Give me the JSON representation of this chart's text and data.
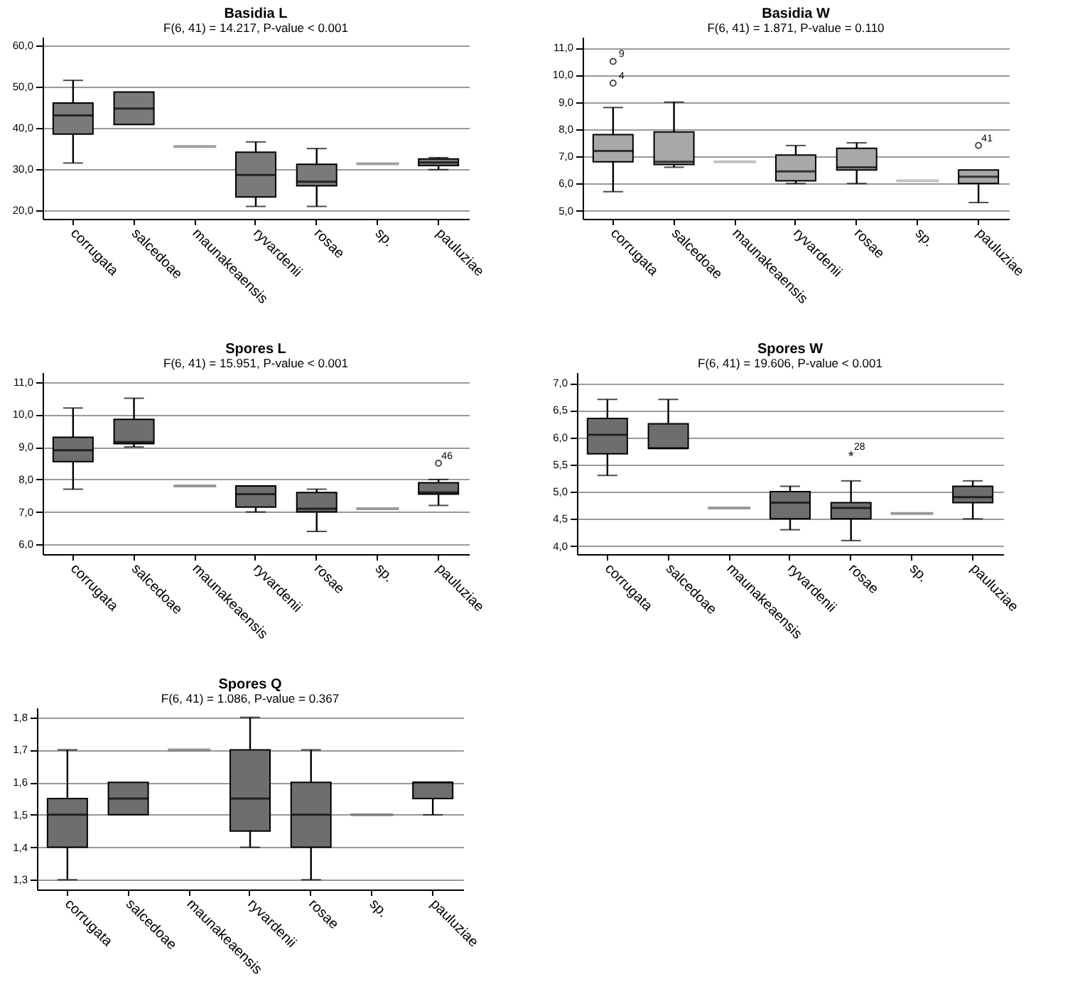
{
  "chart_data": [
    {
      "type": "box",
      "title": "Basidia L",
      "subtitle": "F(6, 41) = 14.217, P-value < 0.001",
      "categories": [
        "corrugata",
        "salcedoae",
        "maunakeaensis",
        "ryvardenii",
        "rosae",
        "sp.",
        "pauluziae"
      ],
      "ylim": [
        18,
        62
      ],
      "yticks": [
        {
          "value": 20,
          "label": "20,0"
        },
        {
          "value": 30,
          "label": "30,0"
        },
        {
          "value": 40,
          "label": "40,0"
        },
        {
          "value": 50,
          "label": "50,0"
        },
        {
          "value": 60,
          "label": "60,0"
        }
      ],
      "grid": "y",
      "series": [
        {
          "color": "#7a7a7a",
          "boxes": [
            {
              "low": 31.5,
              "q1": 38.5,
              "median": 43,
              "q3": 46,
              "high": 51.5
            },
            {
              "low": 40.8,
              "q1": 40.8,
              "median": 44.7,
              "q3": 48.7,
              "high": 48.7
            },
            {
              "low": 35.5,
              "q1": 35.5,
              "median": 35.5,
              "q3": 35.5,
              "high": 35.5
            },
            {
              "low": 21,
              "q1": 23.3,
              "median": 28.6,
              "q3": 34.1,
              "high": 36.6
            },
            {
              "low": 21,
              "q1": 26,
              "median": 27,
              "q3": 31.2,
              "high": 35
            },
            {
              "low": 31.3,
              "q1": 31.3,
              "median": 31.3,
              "q3": 31.3,
              "high": 31.3
            },
            {
              "low": 29.9,
              "q1": 30.9,
              "median": 31.6,
              "q3": 32.5,
              "high": 32.8
            }
          ]
        }
      ]
    },
    {
      "type": "box",
      "title": "Basidia W",
      "subtitle": "F(6, 41) = 1.871, P-value = 0.110",
      "categories": [
        "corrugata",
        "salcedoae",
        "maunakeaensis",
        "ryvardenii",
        "rosae",
        "sp.",
        "pauluziae"
      ],
      "ylim": [
        4.7,
        11.4
      ],
      "yticks": [
        {
          "value": 5,
          "label": "5,0"
        },
        {
          "value": 6,
          "label": "6,0"
        },
        {
          "value": 7,
          "label": "7,0"
        },
        {
          "value": 8,
          "label": "8,0"
        },
        {
          "value": 9,
          "label": "9,0"
        },
        {
          "value": 10,
          "label": "10,0"
        },
        {
          "value": 11,
          "label": "11,0"
        }
      ],
      "grid": "y",
      "marker": "circle",
      "annotations": [
        "4",
        "9",
        "41"
      ],
      "series": [
        {
          "color": "#a8a8a8",
          "boxes": [
            {
              "low": 5.7,
              "q1": 6.8,
              "median": 7.2,
              "q3": 7.8,
              "high": 8.8,
              "outliers": [
                9.7,
                10.5
              ]
            },
            {
              "low": 6.6,
              "q1": 6.7,
              "median": 6.8,
              "q3": 7.9,
              "high": 9.0
            },
            {
              "low": 6.8,
              "q1": 6.8,
              "median": 6.8,
              "q3": 6.8,
              "high": 6.8
            },
            {
              "low": 6.0,
              "q1": 6.1,
              "median": 6.45,
              "q3": 7.05,
              "high": 7.4
            },
            {
              "low": 6.0,
              "q1": 6.5,
              "median": 6.6,
              "q3": 7.3,
              "high": 7.5
            },
            {
              "low": 6.1,
              "q1": 6.1,
              "median": 6.1,
              "q3": 6.1,
              "high": 6.1
            },
            {
              "low": 5.3,
              "q1": 6.0,
              "median": 6.25,
              "q3": 6.5,
              "high": 6.5,
              "outliers": [
                7.4
              ]
            }
          ]
        }
      ]
    },
    {
      "type": "box",
      "title": "Spores L",
      "subtitle": "F(6, 41) = 15.951, P-value < 0.001",
      "categories": [
        "corrugata",
        "salcedoae",
        "maunakeaensis",
        "ryvardenii",
        "rosae",
        "sp.",
        "pauluziae"
      ],
      "ylim": [
        5.7,
        11.3
      ],
      "yticks": [
        {
          "value": 6,
          "label": "6,0"
        },
        {
          "value": 7,
          "label": "7,0"
        },
        {
          "value": 8,
          "label": "8,0"
        },
        {
          "value": 9,
          "label": "9,0"
        },
        {
          "value": 10,
          "label": "10,0"
        },
        {
          "value": 11,
          "label": "11,0"
        }
      ],
      "grid": "y",
      "marker": "circle",
      "annotations": [
        "46"
      ],
      "series": [
        {
          "color": "#6e6e6e",
          "boxes": [
            {
              "low": 7.7,
              "q1": 8.55,
              "median": 8.9,
              "q3": 9.3,
              "high": 10.2
            },
            {
              "low": 9.0,
              "q1": 9.1,
              "median": 9.15,
              "q3": 9.85,
              "high": 10.5
            },
            {
              "low": 7.8,
              "q1": 7.8,
              "median": 7.8,
              "q3": 7.8,
              "high": 7.8
            },
            {
              "low": 7.0,
              "q1": 7.15,
              "median": 7.55,
              "q3": 7.8,
              "high": 7.8
            },
            {
              "low": 6.4,
              "q1": 7.0,
              "median": 7.1,
              "q3": 7.6,
              "high": 7.7
            },
            {
              "low": 7.1,
              "q1": 7.1,
              "median": 7.1,
              "q3": 7.1,
              "high": 7.1
            },
            {
              "low": 7.2,
              "q1": 7.55,
              "median": 7.6,
              "q3": 7.9,
              "high": 8.0,
              "outliers": [
                8.5
              ]
            }
          ]
        }
      ]
    },
    {
      "type": "box",
      "title": "Spores W",
      "subtitle": "F(6, 41) = 19.606, P-value < 0.001",
      "categories": [
        "corrugata",
        "salcedoae",
        "maunakeaensis",
        "ryvardenii",
        "rosae",
        "sp.",
        "pauluziae"
      ],
      "ylim": [
        3.85,
        7.2
      ],
      "yticks": [
        {
          "value": 4,
          "label": "4,0"
        },
        {
          "value": 4.5,
          "label": "4,5"
        },
        {
          "value": 5,
          "label": "5,0"
        },
        {
          "value": 5.5,
          "label": "5,5"
        },
        {
          "value": 6,
          "label": "6,0"
        },
        {
          "value": 6.5,
          "label": "6,5"
        },
        {
          "value": 7,
          "label": "7,0"
        }
      ],
      "grid": "y",
      "marker": "star",
      "annotations": [
        "28"
      ],
      "series": [
        {
          "color": "#6e6e6e",
          "boxes": [
            {
              "low": 5.3,
              "q1": 5.7,
              "median": 6.05,
              "q3": 6.35,
              "high": 6.7
            },
            {
              "low": 5.8,
              "q1": 5.8,
              "median": 5.8,
              "q3": 6.25,
              "high": 6.7
            },
            {
              "low": 4.7,
              "q1": 4.7,
              "median": 4.7,
              "q3": 4.7,
              "high": 4.7
            },
            {
              "low": 4.3,
              "q1": 4.5,
              "median": 4.8,
              "q3": 5.0,
              "high": 5.1
            },
            {
              "low": 4.1,
              "q1": 4.5,
              "median": 4.7,
              "q3": 4.8,
              "high": 5.2,
              "outliers": [
                5.7
              ]
            },
            {
              "low": 4.6,
              "q1": 4.6,
              "median": 4.6,
              "q3": 4.6,
              "high": 4.6
            },
            {
              "low": 4.5,
              "q1": 4.8,
              "median": 4.9,
              "q3": 5.1,
              "high": 5.2
            }
          ]
        }
      ]
    },
    {
      "type": "box",
      "title": "Spores Q",
      "subtitle": "F(6, 41) = 1.086, P-value = 0.367",
      "categories": [
        "corrugata",
        "salcedoae",
        "maunakeaensis",
        "ryvardenii",
        "rosae",
        "sp.",
        "pauluziae"
      ],
      "ylim": [
        1.27,
        1.83
      ],
      "yticks": [
        {
          "value": 1.3,
          "label": "1,3"
        },
        {
          "value": 1.4,
          "label": "1,4"
        },
        {
          "value": 1.5,
          "label": "1,5"
        },
        {
          "value": 1.6,
          "label": "1,6"
        },
        {
          "value": 1.7,
          "label": "1,7"
        },
        {
          "value": 1.8,
          "label": "1,8"
        }
      ],
      "grid": "y",
      "series": [
        {
          "color": "#6e6e6e",
          "boxes": [
            {
              "low": 1.3,
              "q1": 1.4,
              "median": 1.5,
              "q3": 1.55,
              "high": 1.7
            },
            {
              "low": 1.5,
              "q1": 1.5,
              "median": 1.55,
              "q3": 1.6,
              "high": 1.6
            },
            {
              "low": 1.7,
              "q1": 1.7,
              "median": 1.7,
              "q3": 1.7,
              "high": 1.7
            },
            {
              "low": 1.4,
              "q1": 1.45,
              "median": 1.55,
              "q3": 1.7,
              "high": 1.8
            },
            {
              "low": 1.3,
              "q1": 1.4,
              "median": 1.5,
              "q3": 1.6,
              "high": 1.7
            },
            {
              "low": 1.5,
              "q1": 1.5,
              "median": 1.5,
              "q3": 1.5,
              "high": 1.5
            },
            {
              "low": 1.5,
              "q1": 1.55,
              "median": 1.6,
              "q3": 1.6,
              "high": 1.6
            }
          ]
        }
      ]
    }
  ]
}
